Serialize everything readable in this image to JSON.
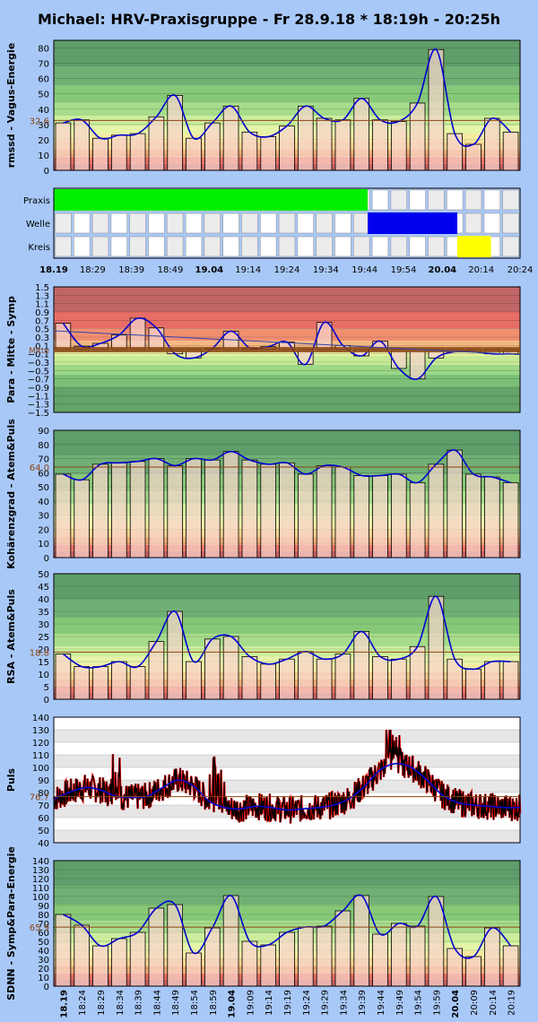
{
  "title": "Michael: HRV-Praxisgruppe - Fr 28.9.18 * 18:19h - 20:25h",
  "colors": {
    "bar_fill": "#f7d4cc",
    "curve": "#0000d0",
    "praxis": "#00ee00",
    "welle": "#0000ee",
    "kreis": "#ffff00",
    "pulse_red": "#ff0000",
    "pulse_black": "#000000",
    "mid_line": "#8b4513"
  },
  "time_axis": {
    "top_labels": [
      "18.19",
      "18:29",
      "18:39",
      "18:49",
      "19.04",
      "19:14",
      "19:24",
      "19:34",
      "19:44",
      "19:54",
      "20.04",
      "20:14",
      "20:24"
    ],
    "bottom_labels": [
      "18.19",
      "18:24",
      "18:29",
      "18:34",
      "18:39",
      "18:44",
      "18:49",
      "18:54",
      "18:59",
      "19.04",
      "19:09",
      "19:14",
      "19:19",
      "19:24",
      "19:29",
      "19:34",
      "19:39",
      "19:44",
      "19:49",
      "19:54",
      "19:59",
      "20.04",
      "20:09",
      "20:14",
      "20:19"
    ]
  },
  "chart_data": [
    {
      "type": "bar",
      "ylabel": "rmssd - Vagus-Energie",
      "ylim": [
        0,
        85
      ],
      "yticks": [
        0,
        10,
        20,
        30,
        40,
        50,
        60,
        70,
        80
      ],
      "reference": 32.6,
      "reference_label": "32.6",
      "values": [
        31,
        33,
        21,
        23,
        24,
        35,
        49,
        21,
        31,
        42,
        25,
        22,
        29,
        42,
        34,
        33,
        47,
        33,
        32,
        44,
        79,
        24,
        17,
        34,
        25
      ]
    },
    {
      "type": "table",
      "rows": [
        "Praxis",
        "Welle",
        "Kreis"
      ],
      "segments": [
        {
          "row": "Praxis",
          "start": 0,
          "end": 14
        },
        {
          "row": "Welle",
          "start": 14,
          "end": 18
        },
        {
          "row": "Kreis",
          "start": 18,
          "end": 19.5
        }
      ]
    },
    {
      "type": "bar",
      "ylabel": "Para - Mitte - Symp",
      "ylim": [
        -1.5,
        1.5
      ],
      "yticks": [
        -1.5,
        -1.3,
        -1.1,
        -0.9,
        -0.7,
        -0.5,
        -0.3,
        -0.1,
        0.1,
        0.3,
        0.5,
        0.7,
        0.9,
        1.1,
        1.3,
        1.5
      ],
      "ytick_labels": [
        "−1.5",
        "−1.3",
        "−1.1",
        "−0.9",
        "−0.7",
        "−0.5",
        "−0.3",
        "−0.1",
        "0.1",
        "0.3",
        "0.5",
        "0.7",
        "0.9",
        "1.1",
        "1.3",
        "1.5"
      ],
      "mid_label": "Mitte",
      "values": [
        0.63,
        0.08,
        0.15,
        0.35,
        0.75,
        0.52,
        -0.1,
        -0.2,
        0.03,
        0.44,
        0.04,
        0.07,
        0.18,
        -0.35,
        0.65,
        0.1,
        -0.15,
        0.2,
        -0.45,
        -0.7,
        -0.2,
        -0.05,
        -0.05,
        -0.1,
        -0.1
      ]
    },
    {
      "type": "bar",
      "ylabel": "Kohärenzgrad - Atem&Puls",
      "ylim": [
        0,
        90
      ],
      "yticks": [
        0,
        10,
        20,
        30,
        40,
        50,
        60,
        70,
        80,
        90
      ],
      "reference": 64.0,
      "reference_label": "64.0",
      "values": [
        59,
        55,
        66,
        67,
        68,
        70,
        65,
        70,
        69,
        75,
        69,
        66,
        67,
        59,
        65,
        64,
        58,
        58,
        59,
        53,
        66,
        76,
        59,
        57,
        53
      ]
    },
    {
      "type": "bar",
      "ylabel": "RSA - Atem&Puls",
      "ylim": [
        0,
        50
      ],
      "yticks": [
        0,
        5,
        10,
        15,
        20,
        25,
        30,
        35,
        40,
        45,
        50
      ],
      "reference": 18.8,
      "reference_label": "18.8",
      "values": [
        18,
        13,
        13,
        15,
        13,
        23,
        35,
        15,
        24,
        25,
        17,
        14,
        16,
        19,
        16,
        18,
        27,
        17,
        16,
        21,
        41,
        16,
        12,
        15,
        15
      ]
    },
    {
      "type": "line",
      "ylabel": "Puls",
      "ylim": [
        40,
        140
      ],
      "yticks": [
        40,
        50,
        60,
        70,
        80,
        90,
        100,
        110,
        120,
        130,
        140
      ],
      "reference": 76.7,
      "reference_label": "76.7",
      "smooth": [
        75,
        80,
        84,
        82,
        77,
        76,
        77,
        84,
        90,
        85,
        73,
        68,
        67,
        69,
        68,
        66,
        67,
        68,
        70,
        75,
        85,
        98,
        103,
        100,
        90,
        78,
        72,
        70,
        69,
        68,
        68
      ]
    },
    {
      "type": "bar",
      "ylabel": "SDNN - Symp&Para-Energie",
      "ylim": [
        0,
        140
      ],
      "yticks": [
        0,
        10,
        20,
        30,
        40,
        50,
        60,
        70,
        80,
        90,
        100,
        110,
        120,
        130,
        140
      ],
      "reference": 65.9,
      "reference_label": "65.9",
      "values": [
        80,
        68,
        45,
        53,
        60,
        87,
        91,
        37,
        65,
        101,
        50,
        46,
        60,
        66,
        67,
        84,
        101,
        58,
        70,
        67,
        100,
        42,
        33,
        65,
        45
      ]
    }
  ]
}
